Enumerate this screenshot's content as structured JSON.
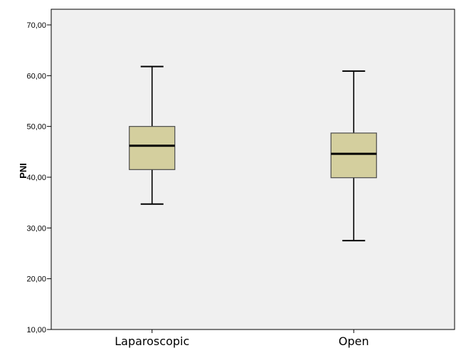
{
  "chart_data": {
    "type": "box",
    "title": "",
    "xlabel": "",
    "ylabel": "PNI",
    "ylim": [
      10,
      70
    ],
    "yticks": [
      10,
      20,
      30,
      40,
      50,
      60,
      70
    ],
    "ytick_labels": [
      "10,00",
      "20,00",
      "30,00",
      "40,00",
      "50,00",
      "60,00",
      "70,00"
    ],
    "grid": false,
    "categories": [
      "Laparoscopic",
      "Open"
    ],
    "boxes": [
      {
        "category": "Laparoscopic",
        "min": 34.7,
        "q1": 41.5,
        "median": 46.2,
        "q3": 50.0,
        "max": 61.8
      },
      {
        "category": "Open",
        "min": 27.5,
        "q1": 39.9,
        "median": 44.6,
        "q3": 48.7,
        "max": 60.9
      }
    ],
    "colors": {
      "plot_background": "#f0f0f0",
      "box_fill": "#d4cf9e",
      "box_stroke": "#4a4a4a",
      "median": "#000000",
      "whisker": "#000000"
    }
  }
}
